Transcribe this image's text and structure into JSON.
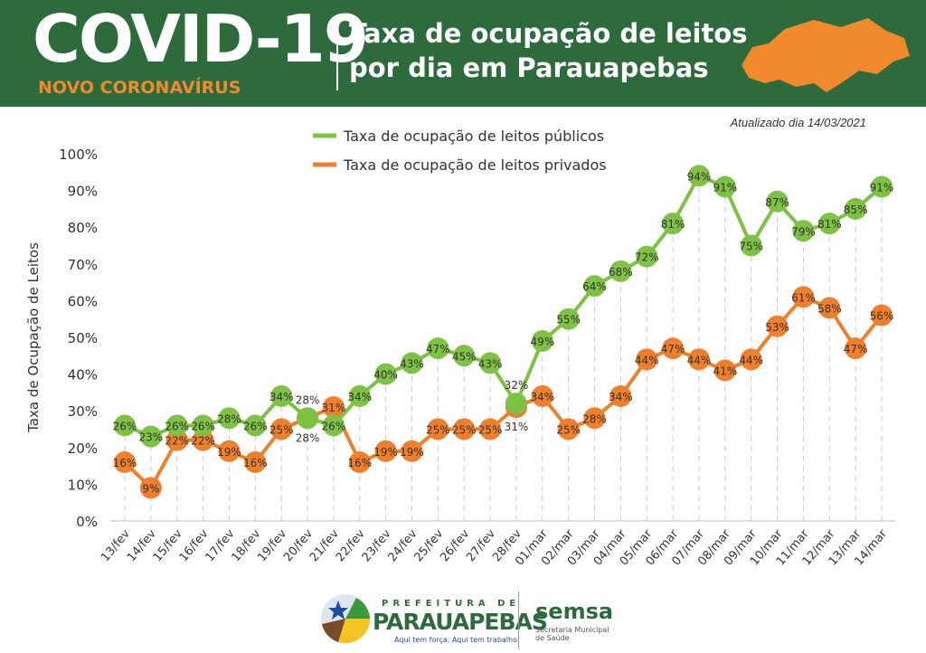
{
  "header": {
    "title_main": "COVID-19",
    "subtitle": "NOVO CORONAVÍRUS",
    "title_line1": "Taxa de ocupação de leitos",
    "title_line2": "por dia em Parauapebas"
  },
  "updated": "Atualizado dia 14/03/2021",
  "footer": {
    "pref_small": "PREFEITURA DE",
    "pref_big": "PARAUAPEBAS",
    "pref_slogan": "Aqui tem força. Aqui tem trabalho",
    "semsa": "semsa",
    "semsa_sub": "Secretaria Municipal de Saúde"
  },
  "chart_data": {
    "type": "line",
    "ylabel": "Taxa de Ocupação de Leitos",
    "ylim": [
      0,
      100
    ],
    "yticks": [
      "0%",
      "10%",
      "20%",
      "30%",
      "40%",
      "50%",
      "60%",
      "70%",
      "80%",
      "90%",
      "100%"
    ],
    "legend_position": "top",
    "categories": [
      "13/fev",
      "14/fev",
      "15/fev",
      "16/fev",
      "17/fev",
      "18/fev",
      "19/fev",
      "20/fev",
      "21/fev",
      "22/fev",
      "23/fev",
      "24/fev",
      "25/fev",
      "26/fev",
      "27/fev",
      "28/fev",
      "01/mar",
      "02/mar",
      "03/mar",
      "04/mar",
      "05/mar",
      "06/mar",
      "07/mar",
      "08/mar",
      "09/mar",
      "10/mar",
      "11/mar",
      "12/mar",
      "13/mar",
      "14/mar"
    ],
    "series": [
      {
        "name": "Taxa de ocupação de leitos públicos",
        "color": "#7dc242",
        "values": [
          26,
          23,
          26,
          26,
          28,
          26,
          34,
          28,
          26,
          34,
          40,
          43,
          47,
          45,
          43,
          32,
          49,
          55,
          64,
          68,
          72,
          81,
          94,
          91,
          75,
          87,
          79,
          81,
          85,
          91
        ]
      },
      {
        "name": "Taxa de ocupação de leitos privados",
        "color": "#f07f2c",
        "values": [
          16,
          9,
          22,
          22,
          19,
          16,
          25,
          28,
          31,
          16,
          19,
          19,
          25,
          25,
          25,
          31,
          34,
          25,
          28,
          34,
          44,
          47,
          44,
          41,
          44,
          53,
          61,
          58,
          47,
          56
        ]
      }
    ]
  }
}
